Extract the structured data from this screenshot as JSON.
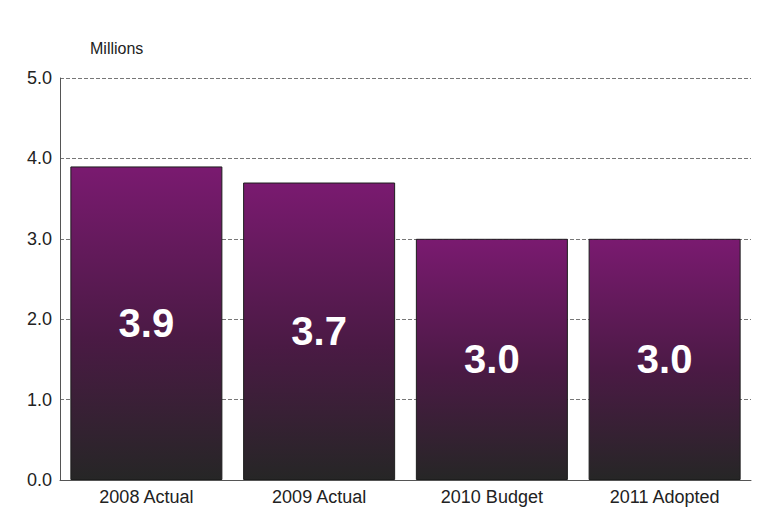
{
  "chart_data": {
    "type": "bar",
    "y_label": "Millions",
    "categories": [
      "2008 Actual",
      "2009 Actual",
      "2010 Budget",
      "2011 Adopted"
    ],
    "values": [
      3.9,
      3.7,
      3.0,
      3.0
    ],
    "value_labels": [
      "3.9",
      "3.7",
      "3.0",
      "3.0"
    ],
    "color": "#7a1a70",
    "ylim": [
      0,
      5
    ],
    "yticks": [
      {
        "value": 0,
        "label": "0.0"
      },
      {
        "value": 1,
        "label": "1.0"
      },
      {
        "value": 2,
        "label": "2.0"
      },
      {
        "value": 3,
        "label": "3.0"
      },
      {
        "value": 4,
        "label": "4.0"
      },
      {
        "value": 5,
        "label": "5.0"
      }
    ],
    "grid": true,
    "data_labels": true
  }
}
